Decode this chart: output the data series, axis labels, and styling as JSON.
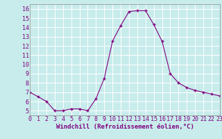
{
  "x": [
    0,
    1,
    2,
    3,
    4,
    5,
    6,
    7,
    8,
    9,
    10,
    11,
    12,
    13,
    14,
    15,
    16,
    17,
    18,
    19,
    20,
    21,
    22,
    23
  ],
  "y": [
    7.0,
    6.5,
    6.0,
    5.0,
    5.0,
    5.2,
    5.2,
    5.0,
    6.3,
    8.5,
    12.5,
    14.2,
    15.7,
    15.8,
    15.8,
    14.3,
    12.5,
    9.0,
    8.0,
    7.5,
    7.2,
    7.0,
    6.8,
    6.6
  ],
  "xlim": [
    0,
    23
  ],
  "ylim": [
    4.5,
    16.5
  ],
  "yticks": [
    5,
    6,
    7,
    8,
    9,
    10,
    11,
    12,
    13,
    14,
    15,
    16
  ],
  "xticks": [
    0,
    1,
    2,
    3,
    4,
    5,
    6,
    7,
    8,
    9,
    10,
    11,
    12,
    13,
    14,
    15,
    16,
    17,
    18,
    19,
    20,
    21,
    22,
    23
  ],
  "xlabel": "Windchill (Refroidissement éolien,°C)",
  "line_color": "#800080",
  "marker": "+",
  "bg_color": "#c8ecec",
  "grid_color": "#ffffff",
  "font_color": "#800080",
  "font_size": 6.0,
  "xlabel_fontsize": 6.5
}
